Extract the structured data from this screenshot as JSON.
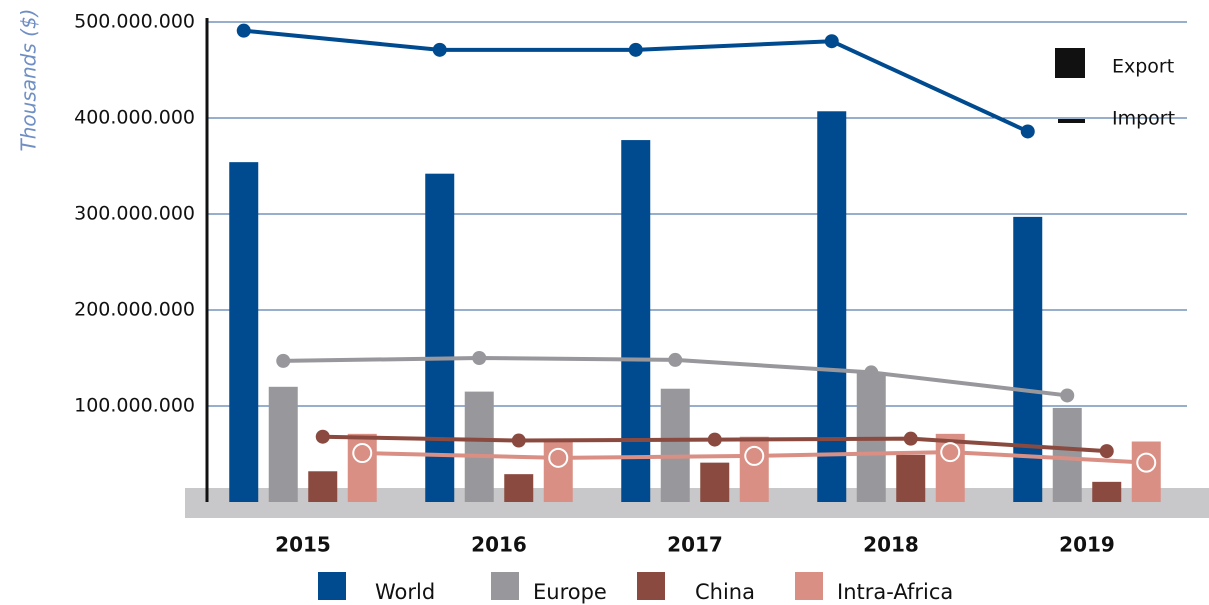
{
  "chart_data": {
    "type": "bar",
    "y_label": "Thousands ($)",
    "categories": [
      "2015",
      "2016",
      "2017",
      "2018",
      "2019"
    ],
    "ylim": [
      0,
      500000000
    ],
    "yticks": [
      {
        "value": 100000000,
        "label": "100.000.000"
      },
      {
        "value": 200000000,
        "label": "200.000.000"
      },
      {
        "value": 300000000,
        "label": "300.000.000"
      },
      {
        "value": 400000000,
        "label": "400.000.000"
      },
      {
        "value": 500000000,
        "label": "500.000.000"
      }
    ],
    "grid": true,
    "mark_legend": [
      "Export",
      "Import"
    ],
    "series": [
      {
        "name": "World",
        "color": "#004a8f",
        "values": [
          354000000,
          342000000,
          377000000,
          407000000,
          297000000
        ],
        "import": [
          491000000,
          471000000,
          471000000,
          480000000,
          386000000
        ]
      },
      {
        "name": "Europe",
        "color": "#98979c",
        "values": [
          120000000,
          115000000,
          118000000,
          135000000,
          98000000
        ],
        "import": [
          147000000,
          150000000,
          148000000,
          135000000,
          111000000
        ]
      },
      {
        "name": "China",
        "color": "#8b4a3f",
        "values": [
          32000000,
          29000000,
          41000000,
          49000000,
          21000000
        ],
        "import": [
          68000000,
          64000000,
          65000000,
          66000000,
          53000000
        ]
      },
      {
        "name": "Intra-Africa",
        "color": "#d98f84",
        "values": [
          71000000,
          66000000,
          68000000,
          71000000,
          63000000
        ],
        "import": [
          51000000,
          46000000,
          48000000,
          52000000,
          41000000
        ]
      }
    ]
  }
}
